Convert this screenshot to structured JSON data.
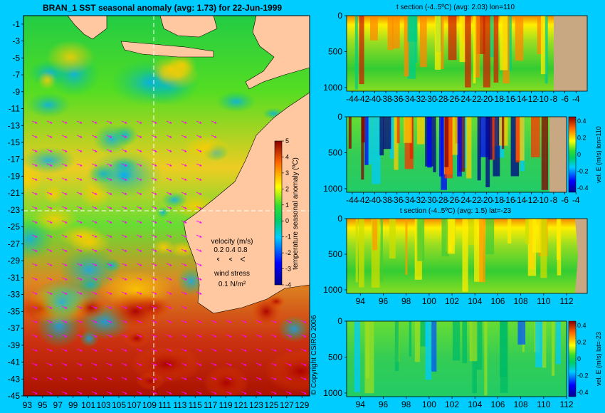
{
  "map": {
    "title": "BRAN_1  SST seasonal anomaly (avg: 1.73) for 22-Jun-1999",
    "lat_ticks": [
      "-1",
      "-3",
      "-5",
      "-7",
      "-9",
      "-11",
      "-13",
      "-15",
      "-17",
      "-19",
      "-21",
      "-23",
      "-25",
      "-27",
      "-29",
      "-31",
      "-33",
      "-35",
      "-37",
      "-39",
      "-41",
      "-43",
      "-45"
    ],
    "lon_ticks": [
      "93",
      "95",
      "97",
      "99",
      "101",
      "103",
      "105",
      "107",
      "109",
      "111",
      "113",
      "115",
      "117",
      "119",
      "121",
      "123",
      "125",
      "127",
      "129"
    ],
    "colorbar_label": "temperature seasonal anomaly (ºC)",
    "colorbar_ticks": [
      "5",
      "4",
      "3",
      "2",
      "1",
      "0",
      "-1",
      "-2",
      "-3",
      "-4"
    ],
    "velocity_label": "velocity (m/s)",
    "velocity_scale": "0.2 0.4 0.8",
    "wind_label": "wind stress",
    "wind_scale": "0.1 N/m²",
    "copyright": "© Copyright CSIRO 2006",
    "colors": {
      "land": "#ffc8a0",
      "background": "#00ccff",
      "arrows": "#ff00ff"
    }
  },
  "chart_data": [
    {
      "type": "heatmap",
      "title": "BRAN_1  SST seasonal anomaly (avg: 1.73) for 22-Jun-1999",
      "x_ticks": [
        "93",
        "95",
        "97",
        "99",
        "101",
        "103",
        "105",
        "107",
        "109",
        "111",
        "113",
        "115",
        "117",
        "119",
        "121",
        "123",
        "125",
        "127",
        "129"
      ],
      "y_ticks": [
        "-1",
        "-3",
        "-5",
        "-7",
        "-9",
        "-11",
        "-13",
        "-15",
        "-17",
        "-19",
        "-21",
        "-23",
        "-25",
        "-27",
        "-29",
        "-31",
        "-33",
        "-35",
        "-37",
        "-39",
        "-41",
        "-43",
        "-45"
      ],
      "xlim": [
        92.5,
        130
      ],
      "ylim": [
        -45,
        0
      ],
      "colorbar": {
        "label": "temperature seasonal anomaly (ºC)",
        "range": [
          -4,
          5
        ]
      },
      "section_lines": {
        "lon": 110,
        "lat": -23
      }
    },
    {
      "type": "heatmap",
      "title": "t section (-4..5ºC) (avg: 2.03) lon=110",
      "x_ticks": [
        "-44",
        "-42",
        "-40",
        "-38",
        "-36",
        "-34",
        "-32",
        "-30",
        "-28",
        "-26",
        "-24",
        "-22",
        "-20",
        "-18",
        "-16",
        "-14",
        "-12",
        "-10",
        "-8",
        "-6",
        "-4"
      ],
      "y_ticks": [
        "0",
        "500",
        "1000"
      ],
      "xlim": [
        -45,
        -2
      ],
      "ylim": [
        1050,
        0
      ]
    },
    {
      "type": "heatmap",
      "title": "",
      "x_ticks": [
        "-44",
        "-42",
        "-40",
        "-38",
        "-36",
        "-34",
        "-32",
        "-30",
        "-28",
        "-26",
        "-24",
        "-22",
        "-20",
        "-18",
        "-16",
        "-14",
        "-12",
        "-10",
        "-8",
        "-6",
        "-4"
      ],
      "y_ticks": [
        "0",
        "500",
        "1000"
      ],
      "colorbar": {
        "label": "vel. E (m/s) lon=110",
        "ticks": [
          "0.4",
          "0.2",
          "0",
          "-0.2",
          "-0.4"
        ]
      },
      "xlim": [
        -45,
        -2
      ],
      "ylim": [
        1050,
        0
      ]
    },
    {
      "type": "heatmap",
      "title": "t section (-4..5ºC) (avg: 1.5) lat=-23",
      "x_ticks": [
        "94",
        "96",
        "98",
        "100",
        "102",
        "104",
        "106",
        "108",
        "110",
        "112"
      ],
      "y_ticks": [
        "0",
        "500",
        "1000"
      ],
      "xlim": [
        92.8,
        113.8
      ],
      "ylim": [
        1050,
        0
      ]
    },
    {
      "type": "heatmap",
      "title": "",
      "x_ticks": [
        "94",
        "96",
        "98",
        "100",
        "102",
        "104",
        "106",
        "108",
        "110",
        "112"
      ],
      "y_ticks": [
        "0",
        "500",
        "1000"
      ],
      "colorbar": {
        "label": "vel. E (m/s) lat=-23",
        "ticks": [
          "0.4",
          "0.2",
          "0",
          "-0.2",
          "-0.4"
        ]
      },
      "xlim": [
        92.8,
        113.8
      ],
      "ylim": [
        1050,
        0
      ]
    }
  ]
}
